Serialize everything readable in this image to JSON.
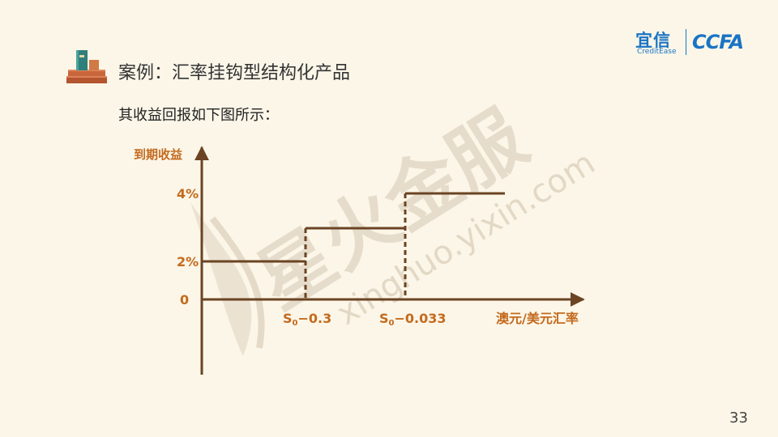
{
  "page": {
    "title": "案例：汇率挂钩型结构化产品",
    "subtitle": "其收益回报如下图所示：",
    "page_number": "33"
  },
  "logo": {
    "cn": "宜信",
    "en": "CreditEase",
    "ccfa": "CCFA"
  },
  "watermark": {
    "main": "星火金服",
    "url": "xinghuo.yixin.com"
  },
  "colors": {
    "line": "#6b4423",
    "label": "#c46a1e",
    "background": "#fbf6e8",
    "logo": "#1a74c4"
  },
  "icons": {
    "header": "books-icon"
  },
  "chart_data": {
    "type": "line",
    "ylabel": "到期收益",
    "xlabel": "澳元/美元汇率",
    "y_ticks": [
      "0",
      "2%",
      "4%"
    ],
    "x_ticks": [
      {
        "base": "S",
        "sub": "0",
        "suffix": "−0.3"
      },
      {
        "base": "S",
        "sub": "0",
        "suffix": "−0.033"
      }
    ],
    "segments": [
      {
        "x_from": 0,
        "x_to": 1,
        "y": 2
      },
      {
        "x_from": 1,
        "x_to": 2,
        "y": 3
      },
      {
        "x_from": 2,
        "x_to": 3,
        "y": 4
      }
    ],
    "dashed_verticals": [
      1,
      2
    ],
    "ylim": [
      0,
      4
    ]
  }
}
